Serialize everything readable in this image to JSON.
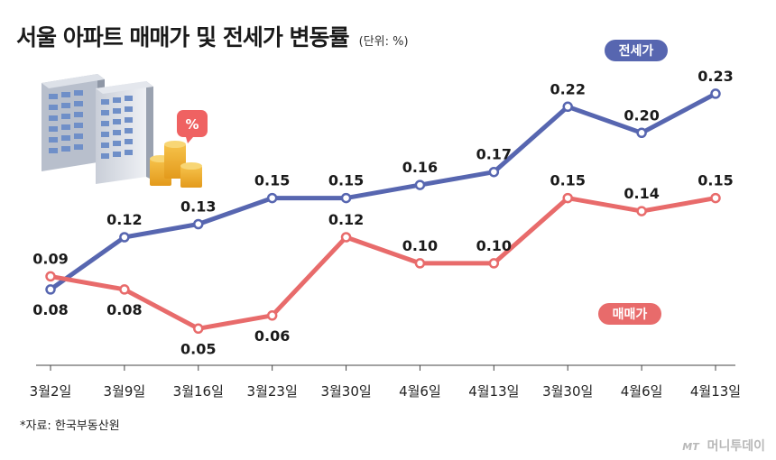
{
  "title": "서울 아파트 매매가 및 전세가 변동률",
  "unit": "(단위: %)",
  "source": "*자료: 한국부동산원",
  "watermark": {
    "logo": "MT",
    "name": "머니투데이"
  },
  "illustration_badge": "%",
  "chart_data": {
    "type": "line",
    "title": "서울 아파트 매매가 및 전세가 변동률",
    "xlabel": "",
    "ylabel": "",
    "categories": [
      "3월2일",
      "3월9일",
      "3월16일",
      "3월23일",
      "3월30일",
      "4월6일",
      "4월13일",
      "3월30일",
      "4월6일",
      "4월13일"
    ],
    "series": [
      {
        "name": "전세가",
        "color": "#5766b0",
        "values": [
          0.08,
          0.12,
          0.13,
          0.15,
          0.15,
          0.16,
          0.17,
          0.22,
          0.2,
          0.23
        ]
      },
      {
        "name": "매매가",
        "color": "#e86b6b",
        "values": [
          0.09,
          0.08,
          0.05,
          0.06,
          0.12,
          0.1,
          0.1,
          0.15,
          0.14,
          0.15
        ]
      }
    ],
    "legend": "inline-labels",
    "grid": false
  }
}
